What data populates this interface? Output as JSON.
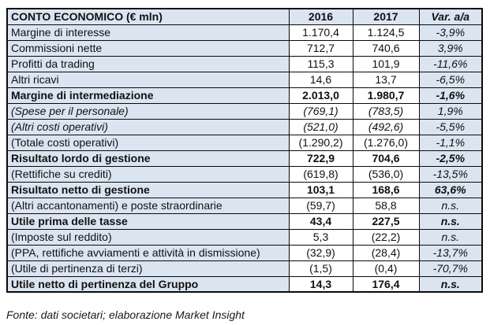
{
  "table": {
    "columns": [
      "CONTO ECONOMICO (€ mln)",
      "2016",
      "2017",
      "Var. a/a"
    ],
    "rows": [
      {
        "label": "Margine di interesse",
        "y2016": "1.170,4",
        "y2017": "1.124,5",
        "var": "-3,9%",
        "style": "normal"
      },
      {
        "label": "Commissioni nette",
        "y2016": "712,7",
        "y2017": "740,6",
        "var": "3,9%",
        "style": "normal"
      },
      {
        "label": "Profitti da trading",
        "y2016": "115,3",
        "y2017": "101,9",
        "var": "-11,6%",
        "style": "normal"
      },
      {
        "label": "Altri ricavi",
        "y2016": "14,6",
        "y2017": "13,7",
        "var": "-6,5%",
        "style": "normal"
      },
      {
        "label": "Margine di intermediazione",
        "y2016": "2.013,0",
        "y2017": "1.980,7",
        "var": "-1,6%",
        "style": "bold"
      },
      {
        "label": "(Spese per il personale)",
        "y2016": "(769,1)",
        "y2017": "(783,5)",
        "var": "1,9%",
        "style": "italic"
      },
      {
        "label": "(Altri costi operativi)",
        "y2016": "(521,0)",
        "y2017": "(492,6)",
        "var": "-5,5%",
        "style": "italic"
      },
      {
        "label": "(Totale costi operativi)",
        "y2016": "(1.290,2)",
        "y2017": "(1.276,0)",
        "var": "-1,1%",
        "style": "normal"
      },
      {
        "label": "Risultato lordo di gestione",
        "y2016": "722,9",
        "y2017": "704,6",
        "var": "-2,5%",
        "style": "bold"
      },
      {
        "label": "(Rettifiche su crediti)",
        "y2016": "(619,8)",
        "y2017": "(536,0)",
        "var": "-13,5%",
        "style": "normal"
      },
      {
        "label": "Risultato netto di gestione",
        "y2016": "103,1",
        "y2017": "168,6",
        "var": "63,6%",
        "style": "bold"
      },
      {
        "label": "(Altri accantonamenti) e poste straordinarie",
        "y2016": "(59,7)",
        "y2017": "58,8",
        "var": "n.s.",
        "style": "normal"
      },
      {
        "label": "Utile prima delle tasse",
        "y2016": "43,4",
        "y2017": "227,5",
        "var": "n.s.",
        "style": "bold"
      },
      {
        "label": "(Imposte sul reddito)",
        "y2016": "5,3",
        "y2017": "(22,2)",
        "var": "n.s.",
        "style": "normal"
      },
      {
        "label": "(PPA, rettifiche avviamenti e attività in dismissione)",
        "y2016": "(32,9)",
        "y2017": "(28,4)",
        "var": "-13,7%",
        "style": "normal"
      },
      {
        "label": "(Utile di pertinenza di terzi)",
        "y2016": "(1,5)",
        "y2017": "(0,4)",
        "var": "-70,7%",
        "style": "normal"
      },
      {
        "label": "Utile netto di pertinenza del Gruppo",
        "y2016": "14,3",
        "y2017": "176,4",
        "var": "n.s.",
        "style": "bold"
      }
    ]
  },
  "footer": {
    "source_note": "Fonte: dati societari; elaborazione Market Insight"
  },
  "colors": {
    "cell_blue": "#dbe5f1",
    "cell_white": "#ffffff",
    "border": "#0a0a0a",
    "text": "#111111"
  }
}
